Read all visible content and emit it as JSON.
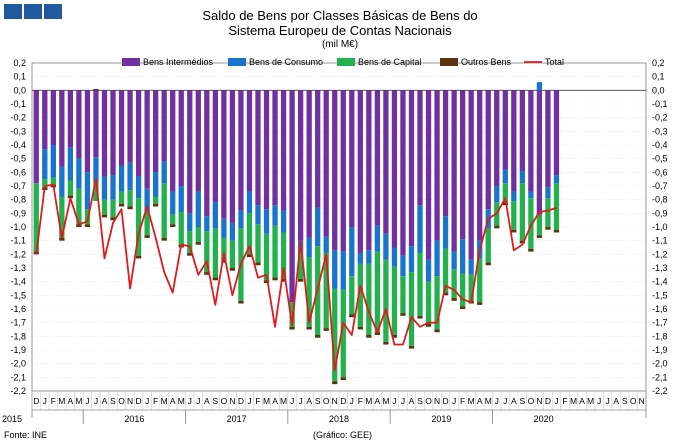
{
  "header": {
    "logo_blocks": 3
  },
  "chart_data": {
    "type": "bar",
    "title_line1": "Saldo de Bens por Classes Básicas de Bens do",
    "title_line2": "Sistema Europeu de Contas Nacionais",
    "unit": "(mil M€)",
    "ylim": [
      -2.2,
      0.2
    ],
    "y_ticks": [
      "0,2",
      "0,1",
      "0,0",
      "-0,1",
      "-0,2",
      "-0,3",
      "-0,4",
      "-0,5",
      "-0,6",
      "-0,7",
      "-0,8",
      "-0,9",
      "-1,0",
      "-1,1",
      "-1,2",
      "-1,3",
      "-1,4",
      "-1,5",
      "-1,6",
      "-1,7",
      "-1,8",
      "-1,9",
      "-2,0",
      "-2,1",
      "-2,2"
    ],
    "grid": true,
    "legend_position": "top",
    "month_labels": [
      "D",
      "J",
      "F",
      "M",
      "A",
      "M",
      "J",
      "J",
      "A",
      "S",
      "O",
      "N",
      "D",
      "J",
      "F",
      "M",
      "A",
      "M",
      "J",
      "J",
      "A",
      "S",
      "O",
      "N",
      "D",
      "J",
      "F",
      "M",
      "A",
      "M",
      "J",
      "J",
      "A",
      "S",
      "O",
      "N",
      "D",
      "J",
      "F",
      "M",
      "A",
      "M",
      "J",
      "J",
      "A",
      "S",
      "O",
      "N",
      "D",
      "J",
      "F",
      "M",
      "A",
      "M",
      "J",
      "J",
      "A",
      "S",
      "O",
      "N",
      "D",
      "J",
      "F",
      "M",
      "A",
      "M",
      "J",
      "J",
      "A",
      "S",
      "O",
      "N"
    ],
    "year_labels": [
      {
        "label": "2015",
        "month_index": 0
      },
      {
        "label": "2016",
        "month_index": 6
      },
      {
        "label": "2017",
        "month_index": 18
      },
      {
        "label": "2018",
        "month_index": 30
      },
      {
        "label": "2019",
        "month_index": 42
      },
      {
        "label": "2020",
        "month_index": 54
      }
    ],
    "series": [
      {
        "name": "Bens Intermédios",
        "color": "#7030a0",
        "values": [
          -0.68,
          -0.43,
          -0.4,
          -0.56,
          -0.42,
          -0.5,
          -0.6,
          -0.49,
          -0.63,
          -0.62,
          -0.55,
          -0.53,
          -0.63,
          -0.72,
          -0.6,
          -0.52,
          -0.74,
          -0.7,
          -0.9,
          -0.74,
          -0.92,
          -0.82,
          -0.94,
          -0.97,
          -0.88,
          -0.74,
          -0.84,
          -0.87,
          -0.84,
          -0.88,
          -1.55,
          -1.1,
          -1.08,
          -0.86,
          -1.07,
          -1.17,
          -1.18,
          -1.0,
          -1.19,
          -1.17,
          -0.99,
          -1.05,
          -1.15,
          -1.21,
          -1.14,
          -0.84,
          -1.24,
          -1.1,
          -0.92,
          -1.18,
          -1.09,
          -1.24,
          -1.1,
          -0.87,
          -0.7,
          -0.58,
          -0.74,
          -0.59,
          -0.74,
          -0.91,
          -0.71,
          -0.62
        ]
      },
      {
        "name": "Bens de Consumo",
        "color": "#1874cd",
        "values": [
          0,
          -0.22,
          -0.24,
          -0.22,
          -0.24,
          -0.22,
          -0.27,
          -0.18,
          -0.17,
          -0.18,
          -0.19,
          -0.2,
          -0.16,
          -0.17,
          -0.18,
          -0.16,
          -0.17,
          -0.19,
          -0.13,
          -0.26,
          -0.11,
          -0.19,
          -0.14,
          -0.13,
          -0.13,
          -0.16,
          -0.14,
          -0.18,
          -0.15,
          -0.16,
          0,
          -0.09,
          -0.14,
          -0.28,
          -0.12,
          -0.28,
          -0.28,
          -0.36,
          -0.08,
          -0.1,
          -0.19,
          -0.19,
          -0.14,
          -0.15,
          -0.19,
          -0.35,
          -0.16,
          -0.26,
          -0.24,
          -0.13,
          -0.25,
          -0.11,
          -0.13,
          -0.14,
          -0.12,
          -0.1,
          -0.07,
          -0.09,
          -0.05,
          0.06,
          -0.08,
          -0.06
        ]
      },
      {
        "name": "Bens de Capital",
        "color": "#22b14c",
        "values": [
          -0.5,
          -0.06,
          -0.05,
          -0.3,
          -0.11,
          -0.26,
          -0.11,
          -0.14,
          -0.11,
          -0.13,
          -0.09,
          -0.12,
          -0.42,
          -0.17,
          -0.05,
          -0.4,
          -0.07,
          -0.24,
          -0.16,
          -0.11,
          -0.3,
          -0.36,
          -0.16,
          -0.2,
          -0.53,
          -0.3,
          -0.28,
          -0.34,
          -0.38,
          -0.34,
          -0.18,
          -0.19,
          -0.51,
          -0.65,
          -0.55,
          -0.68,
          -0.64,
          -0.28,
          -0.46,
          -0.52,
          -0.59,
          -0.6,
          -0.5,
          -0.27,
          -0.54,
          -0.46,
          -0.31,
          -0.39,
          -0.32,
          -0.21,
          -0.24,
          -0.19,
          -0.32,
          -0.25,
          -0.17,
          -0.14,
          -0.21,
          -0.42,
          -0.37,
          -0.15,
          -0.21,
          -0.34
        ]
      },
      {
        "name": "Outros Bens",
        "color": "#5a3510",
        "values": [
          -0.02,
          -0.02,
          -0.02,
          -0.02,
          -0.02,
          -0.02,
          -0.02,
          0.01,
          -0.02,
          -0.02,
          -0.02,
          -0.02,
          -0.02,
          -0.02,
          -0.02,
          -0.02,
          -0.02,
          -0.02,
          -0.02,
          -0.02,
          -0.02,
          -0.02,
          -0.02,
          -0.02,
          -0.02,
          -0.02,
          -0.02,
          -0.02,
          -0.02,
          -0.02,
          -0.02,
          -0.02,
          -0.02,
          -0.02,
          -0.02,
          -0.02,
          -0.02,
          -0.02,
          -0.02,
          -0.02,
          -0.02,
          -0.02,
          -0.02,
          -0.02,
          -0.02,
          -0.02,
          -0.02,
          -0.02,
          -0.02,
          -0.02,
          -0.02,
          -0.02,
          -0.02,
          -0.02,
          -0.02,
          -0.02,
          -0.02,
          -0.02,
          -0.02,
          -0.02,
          -0.02,
          -0.02
        ]
      },
      {
        "name": "Total",
        "type": "line",
        "color": "#e31a1c",
        "values": [
          -1.2,
          -0.7,
          -0.69,
          -1.08,
          -0.79,
          -0.98,
          -0.96,
          -0.65,
          -1.23,
          -0.97,
          -0.87,
          -1.45,
          -1.05,
          -0.85,
          -1.08,
          -1.33,
          -1.48,
          -1.13,
          -1.14,
          -1.35,
          -1.25,
          -1.57,
          -1.19,
          -1.5,
          -1.27,
          -1.14,
          -1.37,
          -1.35,
          -1.73,
          -1.3,
          -1.72,
          -1.1,
          -1.7,
          -1.45,
          -1.2,
          -2.05,
          -1.7,
          -1.79,
          -1.43,
          -1.62,
          -1.77,
          -1.6,
          -1.86,
          -1.86,
          -1.66,
          -1.73,
          -1.7,
          -1.7,
          -1.43,
          -1.46,
          -1.53,
          -1.55,
          -1.17,
          -0.94,
          -0.9,
          -0.79,
          -1.17,
          -1.13,
          -0.99,
          -0.89,
          -0.88,
          -0.86
        ]
      }
    ]
  },
  "footer": {
    "source": "Fonte: INE",
    "credit": "(Gráfico: GEE)"
  }
}
